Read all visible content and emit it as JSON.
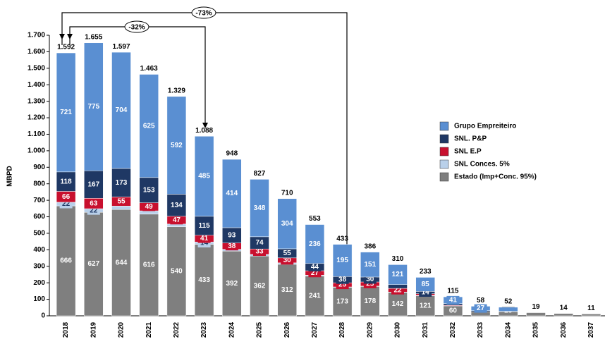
{
  "chart_data": {
    "type": "stacked_bar",
    "y_label": "MBPD",
    "categories": [
      "2018",
      "2019",
      "2020",
      "2021",
      "2022",
      "2023",
      "2024",
      "2025",
      "2026",
      "2027",
      "2028",
      "2029",
      "2030",
      "2031",
      "2032",
      "2033",
      "2034",
      "2035",
      "2036",
      "2037"
    ],
    "ylim": [
      0,
      1700
    ],
    "yticks": [
      0,
      100,
      200,
      300,
      400,
      500,
      600,
      700,
      800,
      900,
      {
        "value": 1000,
        "label": "1.000"
      },
      {
        "value": 1100,
        "label": "1.100"
      },
      {
        "value": 1200,
        "label": "1.200"
      },
      {
        "value": 1300,
        "label": "1.300"
      },
      {
        "value": 1400,
        "label": "1.400"
      },
      {
        "value": 1500,
        "label": "1.500"
      },
      {
        "value": 1600,
        "label": "1.600"
      },
      {
        "value": 1700,
        "label": "1.700"
      }
    ],
    "series": [
      {
        "name": "Estado (Imp+Conc. 95%)",
        "color": "#7f7f7f",
        "label_color": "#ffffff",
        "values": [
          666,
          627,
          644,
          616,
          540,
          433,
          392,
          362,
          312,
          241,
          173,
          178,
          142,
          121,
          60,
          25,
          25,
          19,
          14,
          11
        ],
        "value_labels": [
          "666",
          "627",
          "644",
          "616",
          "540",
          "433",
          "392",
          "362",
          "312",
          "241",
          "173",
          "178",
          "142",
          "121",
          "60",
          null,
          "25",
          null,
          null,
          null
        ]
      },
      {
        "name": "SNL Conces. 5%",
        "color": "#b9d0ea",
        "label_color": "#1f3864",
        "values": [
          22,
          22,
          21,
          20,
          16,
          14,
          11,
          10,
          9,
          5,
          2,
          2,
          2,
          3,
          0,
          0,
          0,
          0,
          0,
          0
        ],
        "value_labels": [
          "22",
          "22",
          null,
          null,
          null,
          "14",
          null,
          null,
          null,
          null,
          null,
          null,
          null,
          null,
          null,
          null,
          null,
          null,
          null,
          null
        ]
      },
      {
        "name": "SNL E.P",
        "color": "#c8102e",
        "label_color": "#ffffff",
        "values": [
          66,
          63,
          55,
          49,
          47,
          41,
          38,
          33,
          30,
          27,
          25,
          25,
          22,
          10,
          4,
          0,
          0,
          0,
          0,
          0
        ],
        "value_labels": [
          "66",
          "63",
          "55",
          "49",
          "47",
          "41",
          "38",
          "33",
          "30",
          "27",
          "25",
          "25",
          "22",
          null,
          null,
          null,
          null,
          null,
          null,
          null
        ]
      },
      {
        "name": "SNL. P&P",
        "color": "#1f3864",
        "label_color": "#ffffff",
        "values": [
          118,
          167,
          173,
          153,
          134,
          115,
          93,
          74,
          55,
          44,
          38,
          30,
          23,
          14,
          10,
          6,
          2,
          0,
          0,
          0
        ],
        "value_labels": [
          "118",
          "167",
          "173",
          "153",
          "134",
          "115",
          "93",
          "74",
          "55",
          "44",
          "38",
          "30",
          null,
          "14",
          null,
          null,
          null,
          null,
          null,
          null
        ]
      },
      {
        "name": "Grupo Empreiteiro",
        "color": "#5a8fd2",
        "label_color": "#ffffff",
        "values": [
          721,
          775,
          704,
          625,
          592,
          485,
          414,
          348,
          304,
          236,
          195,
          151,
          121,
          85,
          41,
          27,
          25,
          0,
          0,
          0
        ],
        "value_labels": [
          "721",
          "775",
          "704",
          "625",
          "592",
          "485",
          "414",
          "348",
          "304",
          "236",
          "195",
          "151",
          "121",
          "85",
          "41",
          "27",
          null,
          null,
          null,
          null
        ]
      }
    ],
    "totals": {
      "values": [
        1592,
        1655,
        1597,
        1463,
        1329,
        1088,
        948,
        827,
        710,
        553,
        433,
        386,
        310,
        233,
        115,
        58,
        52,
        19,
        14,
        11
      ],
      "value_labels": [
        "1.592",
        "1.655",
        "1.597",
        "1.463",
        "1.329",
        "1.088",
        "948",
        "827",
        "710",
        "553",
        "433",
        "386",
        "310",
        "233",
        "115",
        "58",
        "52",
        "19",
        "14",
        "11"
      ]
    },
    "annotations": [
      "-73%",
      "-32%"
    ],
    "grid": false
  }
}
